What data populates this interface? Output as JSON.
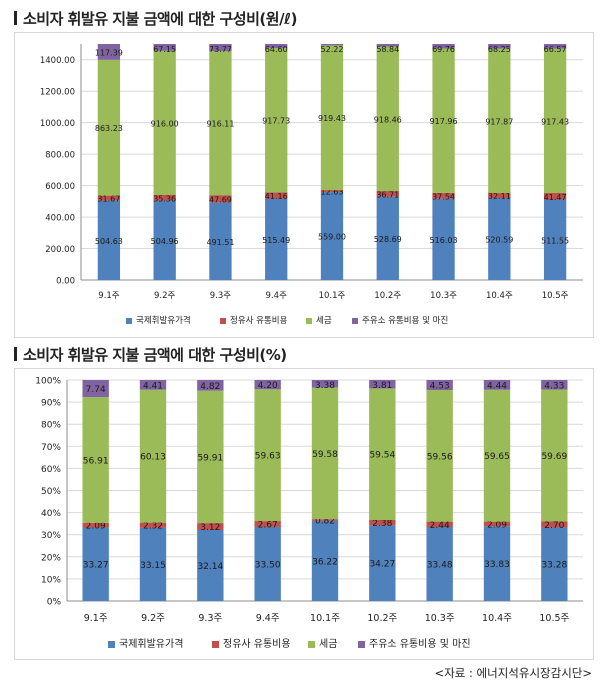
{
  "charts": [
    {
      "title": "소비자 휘발유 지불 금액에 대한 구성비(원/ℓ)",
      "chart_data": {
        "type": "bar",
        "stacked": true,
        "categories": [
          "9.1주",
          "9.2주",
          "9.3주",
          "9.4주",
          "10.1주",
          "10.2주",
          "10.3주",
          "10.4주",
          "10.5주"
        ],
        "series": [
          {
            "name": "국제휘발유가격",
            "color": "#4f81bd",
            "values": [
              504.63,
              504.96,
              491.51,
              515.49,
              559.0,
              528.69,
              516.03,
              520.59,
              511.55
            ],
            "labels": [
              "504.63",
              "504.96",
              "491.51",
              "515.49",
              "559.00",
              "528.69",
              "516.03",
              "520.59",
              "511.55"
            ]
          },
          {
            "name": "정유사 유통비용",
            "color": "#c0504d",
            "values": [
              31.67,
              35.36,
              47.69,
              41.16,
              12.63,
              36.71,
              37.54,
              32.11,
              41.47
            ],
            "labels": [
              "31.67",
              "35.36",
              "47.69",
              "41.16",
              "12.63",
              "36.71",
              "37.54",
              "32.11",
              "41.47"
            ]
          },
          {
            "name": "세금",
            "color": "#9bbb59",
            "values": [
              863.23,
              916.0,
              916.11,
              917.73,
              919.43,
              918.46,
              917.96,
              917.87,
              917.43
            ],
            "labels": [
              "863.23",
              "916.00",
              "916.11",
              "917.73",
              "919.43",
              "918.46",
              "917.96",
              "917.87",
              "917.43"
            ]
          },
          {
            "name": "주유소 유통비용 및 마진",
            "color": "#8064a2",
            "values": [
              117.39,
              67.15,
              73.77,
              64.6,
              52.22,
              58.84,
              69.76,
              68.25,
              66.57
            ],
            "labels": [
              "117.39",
              "67.15",
              "73.77",
              "64.60",
              "52.22",
              "58.84",
              "69.76",
              "68.25",
              "66.57"
            ]
          }
        ],
        "ylim": [
          0,
          1500
        ],
        "yticks": [
          "0.00",
          "200.00",
          "400.00",
          "600.00",
          "800.00",
          "1000.00",
          "1200.00",
          "1400.00"
        ],
        "ytick_values": [
          0,
          200,
          400,
          600,
          800,
          1000,
          1200,
          1400
        ],
        "grid": true,
        "legend": "bottom"
      }
    },
    {
      "title": "소비자 휘발유 지불 금액에 대한 구성비(%)",
      "chart_data": {
        "type": "bar",
        "stacked": true,
        "categories": [
          "9.1주",
          "9.2주",
          "9.3주",
          "9.4주",
          "10.1주",
          "10.2주",
          "10.3주",
          "10.4주",
          "10.5주"
        ],
        "series": [
          {
            "name": "국제휘발유가격",
            "color": "#4f81bd",
            "values": [
              33.27,
              33.15,
              32.14,
              33.5,
              36.22,
              34.27,
              33.48,
              33.83,
              33.28
            ],
            "labels": [
              "33.27",
              "33.15",
              "32.14",
              "33.50",
              "36.22",
              "34.27",
              "33.48",
              "33.83",
              "33.28"
            ]
          },
          {
            "name": "정유사 유통비용",
            "color": "#c0504d",
            "values": [
              2.09,
              2.32,
              3.12,
              2.67,
              0.82,
              2.38,
              2.44,
              2.09,
              2.7
            ],
            "labels": [
              "2.09",
              "2.32",
              "3.12",
              "2.67",
              "0.82",
              "2.38",
              "2.44",
              "2.09",
              "2.70"
            ]
          },
          {
            "name": "세금",
            "color": "#9bbb59",
            "values": [
              56.91,
              60.13,
              59.91,
              59.63,
              59.58,
              59.54,
              59.56,
              59.65,
              59.69
            ],
            "labels": [
              "56.91",
              "60.13",
              "59.91",
              "59.63",
              "59.58",
              "59.54",
              "59.56",
              "59.65",
              "59.69"
            ]
          },
          {
            "name": "주유소 유통비용 및 마진",
            "color": "#8064a2",
            "values": [
              7.74,
              4.41,
              4.82,
              4.2,
              3.38,
              3.81,
              4.53,
              4.44,
              4.33
            ],
            "labels": [
              "7.74",
              "4.41",
              "4.82",
              "4.20",
              "3.38",
              "3.81",
              "4.53",
              "4.44",
              "4.33"
            ]
          }
        ],
        "ylim": [
          0,
          100
        ],
        "yticks": [
          "0%",
          "10%",
          "20%",
          "30%",
          "40%",
          "50%",
          "60%",
          "70%",
          "80%",
          "90%",
          "100%"
        ],
        "ytick_values": [
          0,
          10,
          20,
          30,
          40,
          50,
          60,
          70,
          80,
          90,
          100
        ],
        "grid": true,
        "legend": "bottom"
      }
    }
  ],
  "source": "<자료 : 에너지석유시장감시단>"
}
